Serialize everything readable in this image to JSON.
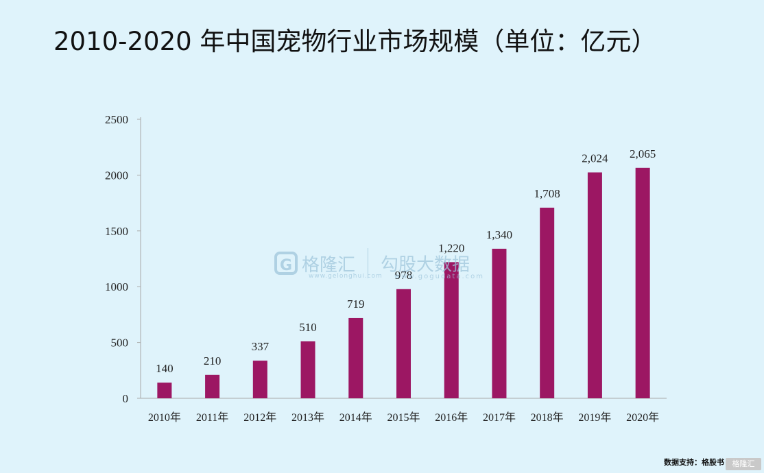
{
  "title": "2010-2020 年中国宠物行业市场规模（单位：亿元）",
  "source": "数据支持：格股书",
  "watermark": {
    "name": "格隆汇",
    "url": "www.gelonghui.com",
    "name2": "勾股大数据",
    "url2": "www.gogudata.com"
  },
  "colors": {
    "bar": "#9c1763",
    "background": "#dff3fb",
    "axis": "#aaaaaa"
  },
  "chart_data": {
    "type": "bar",
    "title": "2010-2020 年中国宠物行业市场规模（单位：亿元）",
    "categories": [
      "2010年",
      "2011年",
      "2012年",
      "2013年",
      "2014年",
      "2015年",
      "2016年",
      "2017年",
      "2018年",
      "2019年",
      "2020年"
    ],
    "values": [
      140,
      210,
      337,
      510,
      719,
      978,
      1220,
      1340,
      1708,
      2024,
      2065
    ],
    "data_labels": [
      "140",
      "210",
      "337",
      "510",
      "719",
      "978",
      "1,220",
      "1,340",
      "1,708",
      "2,024",
      "2,065"
    ],
    "yticks": [
      "0",
      "500",
      "1000",
      "1500",
      "2000",
      "2500"
    ],
    "ylim": [
      0,
      2500
    ],
    "xlabel": "",
    "ylabel": "",
    "grid": false,
    "legend": "none"
  }
}
